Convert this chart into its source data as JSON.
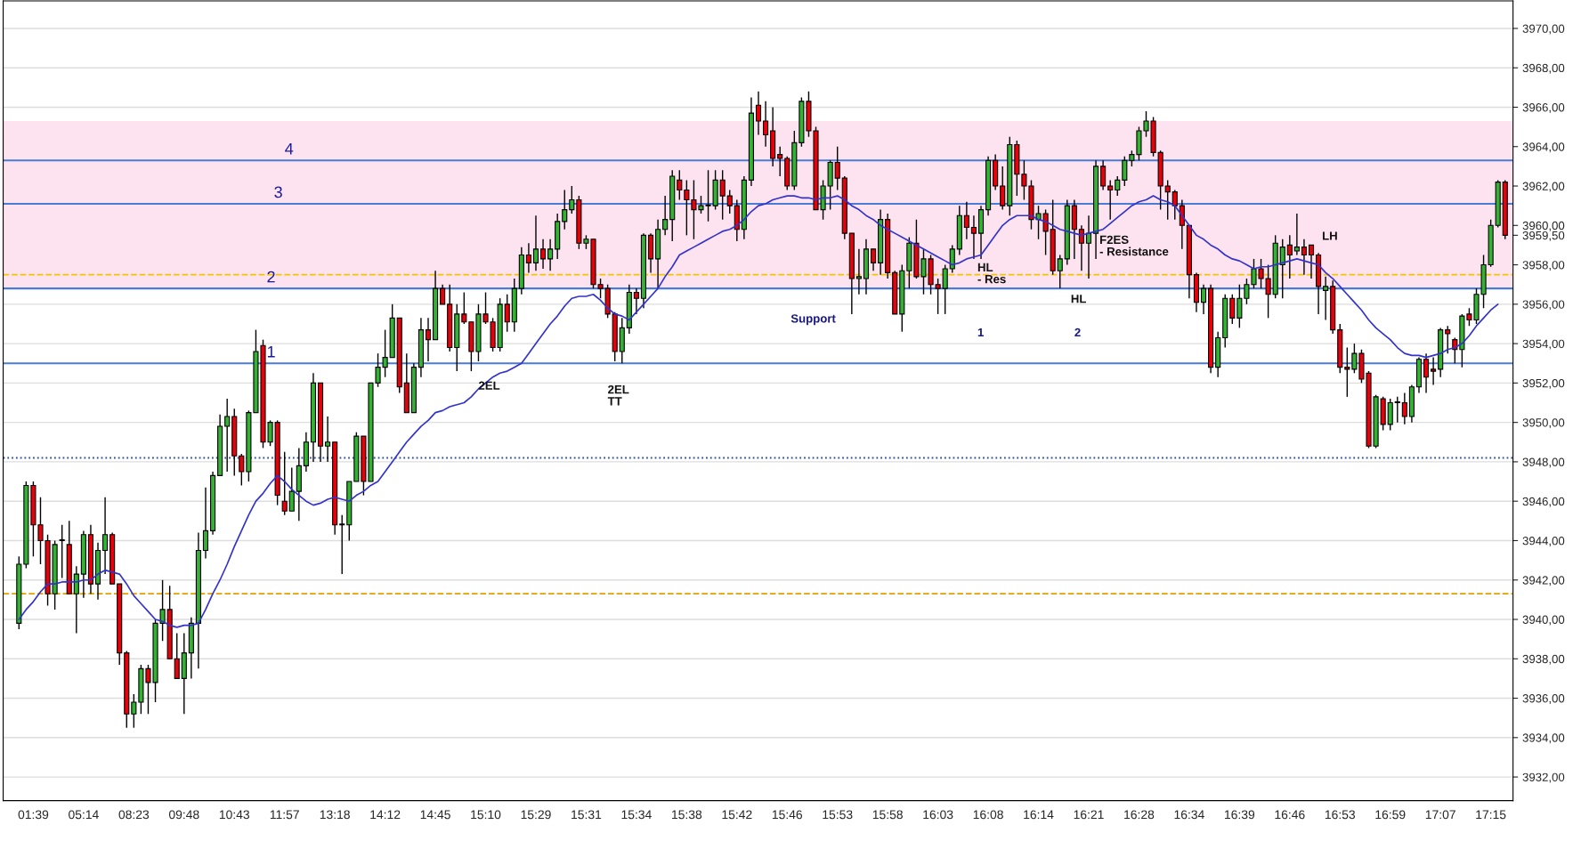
{
  "chart_data": {
    "type": "candlestick",
    "categories": [
      null,
      null,
      "01:39",
      null,
      null,
      null,
      null,
      null,
      null,
      "05:14",
      null,
      null,
      null,
      null,
      null,
      null,
      "08:23",
      null,
      null,
      null,
      null,
      null,
      null,
      "09:48",
      null,
      null,
      null,
      null,
      null,
      null,
      "10:43",
      null,
      null,
      null,
      null,
      null,
      null,
      "11:57",
      null,
      null,
      null,
      null,
      null,
      null,
      "13:18",
      null,
      null,
      null,
      null,
      null,
      null,
      "14:12",
      null,
      null,
      null,
      null,
      null,
      null,
      "14:45",
      null,
      null,
      null,
      null,
      null,
      null,
      "15:10",
      null,
      null,
      null,
      null,
      null,
      null,
      "15:29",
      null,
      null,
      null,
      null,
      null,
      null,
      "15:31",
      null,
      null,
      null,
      null,
      null,
      null,
      "15:34",
      null,
      null,
      null,
      null,
      null,
      null,
      "15:38",
      null,
      null,
      null,
      null,
      null,
      null,
      "15:42",
      null,
      null,
      null,
      null,
      null,
      null,
      "15:46",
      null,
      null,
      null,
      null,
      null,
      null,
      "15:53",
      null,
      null,
      null,
      null,
      null,
      null,
      "15:58",
      null,
      null,
      null,
      null,
      null,
      null,
      "16:03",
      null,
      null,
      null,
      null,
      null,
      null,
      "16:08",
      null,
      null,
      null,
      null,
      null,
      null,
      "16:14",
      null,
      null,
      null,
      null,
      null,
      null,
      "16:21",
      null,
      null,
      null,
      null,
      null,
      null,
      "16:28",
      null,
      null,
      null,
      null,
      null,
      null,
      "16:34",
      null,
      null,
      null,
      null,
      null,
      null,
      "16:39",
      null,
      null,
      null,
      null,
      null,
      null,
      "16:46",
      null,
      null,
      null,
      null,
      null,
      null,
      "16:53",
      null,
      null,
      null,
      null,
      null,
      null,
      "16:59",
      null,
      null,
      null,
      null,
      null,
      null,
      "17:07",
      null,
      null,
      null,
      null,
      null,
      null,
      "17:15",
      null,
      null
    ],
    "ohlc": [
      [
        3939.8,
        3943.2,
        3939.5,
        3942.8
      ],
      [
        3942.8,
        3947.0,
        3942.6,
        3946.8
      ],
      [
        3946.8,
        3947.0,
        3943.2,
        3944.8
      ],
      [
        3944.8,
        3946.2,
        3942.8,
        3944.0
      ],
      [
        3944.0,
        3944.3,
        3940.7,
        3941.3
      ],
      [
        3941.3,
        3944.0,
        3940.5,
        3943.8
      ],
      [
        3944.0,
        3944.8,
        3942.1,
        3944.0
      ],
      [
        3943.8,
        3945.0,
        3941.3,
        3941.3
      ],
      [
        3941.3,
        3942.7,
        3939.3,
        3942.3
      ],
      [
        3942.3,
        3944.5,
        3941.1,
        3944.3
      ],
      [
        3944.3,
        3944.8,
        3941.3,
        3941.8
      ],
      [
        3941.8,
        3943.9,
        3941.0,
        3943.5
      ],
      [
        3943.5,
        3946.2,
        3942.3,
        3944.3
      ],
      [
        3944.3,
        3944.4,
        3941.8,
        3941.8
      ],
      [
        3941.8,
        3941.8,
        3937.7,
        3938.3
      ],
      [
        3938.3,
        3938.4,
        3934.5,
        3935.2
      ],
      [
        3935.2,
        3936.2,
        3934.5,
        3935.8
      ],
      [
        3935.8,
        3937.7,
        3935.2,
        3937.5
      ],
      [
        3937.5,
        3937.7,
        3935.2,
        3936.8
      ],
      [
        3936.8,
        3940.0,
        3935.8,
        3939.8
      ],
      [
        3939.8,
        3942.0,
        3938.9,
        3940.5
      ],
      [
        3940.5,
        3941.7,
        3938.0,
        3938.0
      ],
      [
        3938.0,
        3939.3,
        3937.0,
        3937.0
      ],
      [
        3937.0,
        3939.3,
        3935.2,
        3938.3
      ],
      [
        3938.3,
        3940.1,
        3937.0,
        3939.8
      ],
      [
        3939.8,
        3944.4,
        3937.5,
        3943.5
      ],
      [
        3943.5,
        3946.7,
        3943.1,
        3944.5
      ],
      [
        3944.5,
        3947.5,
        3944.3,
        3947.3
      ],
      [
        3947.3,
        3950.4,
        3947.3,
        3949.8
      ],
      [
        3949.8,
        3951.2,
        3947.5,
        3950.3
      ],
      [
        3950.3,
        3950.7,
        3947.3,
        3948.3
      ],
      [
        3948.3,
        3948.4,
        3946.8,
        3947.5
      ],
      [
        3947.5,
        3950.6,
        3947.0,
        3950.5
      ],
      [
        3950.5,
        3954.7,
        3950.5,
        3953.6
      ],
      [
        3953.9,
        3954.2,
        3948.7,
        3949.0
      ],
      [
        3949.0,
        3950.1,
        3948.8,
        3950.0
      ],
      [
        3950.0,
        3950.1,
        3945.8,
        3946.3
      ],
      [
        3946.0,
        3948.5,
        3945.3,
        3945.5
      ],
      [
        3945.5,
        3947.7,
        3945.5,
        3946.5
      ],
      [
        3946.5,
        3948.7,
        3945.0,
        3947.8
      ],
      [
        3947.8,
        3949.5,
        3947.5,
        3949.0
      ],
      [
        3949.0,
        3952.5,
        3948.0,
        3952.0
      ],
      [
        3952.0,
        3952.0,
        3948.0,
        3948.8
      ],
      [
        3948.8,
        3950.3,
        3948.0,
        3949.0
      ],
      [
        3949.0,
        3949.0,
        3944.3,
        3944.8
      ],
      [
        3944.8,
        3945.3,
        3942.3,
        3944.8
      ],
      [
        3944.8,
        3947.0,
        3944.0,
        3947.0
      ],
      [
        3947.0,
        3949.5,
        3947.0,
        3949.3
      ],
      [
        3949.3,
        3949.3,
        3946.3,
        3947.0
      ],
      [
        3947.0,
        3952.0,
        3947.0,
        3952.0
      ],
      [
        3952.0,
        3953.5,
        3951.8,
        3952.8
      ],
      [
        3952.8,
        3954.7,
        3952.3,
        3953.3
      ],
      [
        3953.3,
        3956.0,
        3953.3,
        3955.3
      ],
      [
        3955.3,
        3955.3,
        3951.5,
        3951.8
      ],
      [
        3952.0,
        3953.5,
        3950.5,
        3950.5
      ],
      [
        3950.5,
        3953.0,
        3950.5,
        3952.8
      ],
      [
        3952.8,
        3955.3,
        3952.3,
        3954.7
      ],
      [
        3954.7,
        3955.3,
        3953.1,
        3954.2
      ],
      [
        3954.2,
        3957.7,
        3954.2,
        3956.8
      ],
      [
        3956.8,
        3957.0,
        3956.0,
        3956.0
      ],
      [
        3956.0,
        3957.0,
        3953.6,
        3953.8
      ],
      [
        3953.8,
        3956.0,
        3952.6,
        3955.5
      ],
      [
        3955.5,
        3956.6,
        3955.0,
        3955.1
      ],
      [
        3955.1,
        3955.1,
        3952.6,
        3953.6
      ],
      [
        3953.6,
        3956.0,
        3953.1,
        3955.5
      ],
      [
        3955.5,
        3956.6,
        3955.0,
        3955.1
      ],
      [
        3955.1,
        3955.3,
        3953.6,
        3953.8
      ],
      [
        3953.8,
        3956.3,
        3953.6,
        3956.0
      ],
      [
        3956.0,
        3956.5,
        3954.6,
        3955.1
      ],
      [
        3955.1,
        3957.3,
        3954.6,
        3956.8
      ],
      [
        3956.8,
        3958.9,
        3956.5,
        3958.5
      ],
      [
        3958.5,
        3959.1,
        3957.6,
        3958.1
      ],
      [
        3958.1,
        3960.5,
        3957.7,
        3958.8
      ],
      [
        3958.8,
        3959.3,
        3957.8,
        3958.3
      ],
      [
        3958.3,
        3959.3,
        3957.7,
        3958.8
      ],
      [
        3958.8,
        3960.6,
        3958.3,
        3960.2
      ],
      [
        3960.2,
        3961.8,
        3959.8,
        3960.8
      ],
      [
        3960.8,
        3962.0,
        3960.6,
        3961.3
      ],
      [
        3961.3,
        3961.5,
        3958.8,
        3959.1
      ],
      [
        3959.1,
        3959.5,
        3958.8,
        3959.3
      ],
      [
        3959.3,
        3959.3,
        3956.8,
        3957.0
      ],
      [
        3957.0,
        3957.3,
        3956.3,
        3956.8
      ],
      [
        3956.8,
        3957.0,
        3955.3,
        3955.5
      ],
      [
        3955.5,
        3955.6,
        3953.1,
        3953.6
      ],
      [
        3953.6,
        3955.3,
        3953.0,
        3954.8
      ],
      [
        3954.8,
        3957.0,
        3954.5,
        3956.6
      ],
      [
        3956.6,
        3956.8,
        3955.5,
        3956.3
      ],
      [
        3956.3,
        3959.6,
        3955.8,
        3959.5
      ],
      [
        3959.5,
        3959.6,
        3957.6,
        3958.3
      ],
      [
        3958.3,
        3960.3,
        3956.8,
        3959.8
      ],
      [
        3959.8,
        3961.5,
        3959.5,
        3960.3
      ],
      [
        3960.3,
        3962.8,
        3959.2,
        3962.5
      ],
      [
        3962.3,
        3962.8,
        3961.3,
        3961.8
      ],
      [
        3961.8,
        3962.3,
        3959.5,
        3961.3
      ],
      [
        3961.3,
        3962.3,
        3959.3,
        3960.8
      ],
      [
        3960.8,
        3961.5,
        3960.6,
        3961.0
      ],
      [
        3961.0,
        3962.8,
        3960.2,
        3961.0
      ],
      [
        3961.0,
        3962.8,
        3960.8,
        3962.3
      ],
      [
        3962.3,
        3962.8,
        3960.3,
        3961.5
      ],
      [
        3961.5,
        3961.8,
        3960.6,
        3961.0
      ],
      [
        3961.0,
        3961.3,
        3959.2,
        3959.8
      ],
      [
        3959.8,
        3962.5,
        3959.3,
        3962.3
      ],
      [
        3962.3,
        3966.5,
        3962.0,
        3965.7
      ],
      [
        3966.1,
        3966.8,
        3964.6,
        3965.3
      ],
      [
        3965.3,
        3966.3,
        3964.0,
        3964.6
      ],
      [
        3964.8,
        3966.0,
        3963.0,
        3963.4
      ],
      [
        3963.6,
        3964.0,
        3962.5,
        3963.4
      ],
      [
        3963.4,
        3963.5,
        3961.8,
        3962.0
      ],
      [
        3962.0,
        3964.8,
        3961.8,
        3964.2
      ],
      [
        3964.2,
        3966.5,
        3964.0,
        3966.3
      ],
      [
        3966.3,
        3966.8,
        3964.5,
        3964.8
      ],
      [
        3964.8,
        3965.0,
        3960.8,
        3960.8
      ],
      [
        3960.8,
        3962.3,
        3960.3,
        3962.0
      ],
      [
        3962.0,
        3963.3,
        3960.8,
        3963.2
      ],
      [
        3963.2,
        3964.0,
        3961.8,
        3962.4
      ],
      [
        3962.4,
        3962.5,
        3959.3,
        3959.6
      ],
      [
        3959.6,
        3959.6,
        3955.5,
        3957.3
      ],
      [
        3957.3,
        3958.8,
        3956.5,
        3957.4
      ],
      [
        3957.3,
        3959.3,
        3956.5,
        3958.8
      ],
      [
        3958.8,
        3958.8,
        3957.7,
        3958.1
      ],
      [
        3958.1,
        3960.8,
        3957.5,
        3960.3
      ],
      [
        3960.3,
        3960.6,
        3957.3,
        3957.6
      ],
      [
        3957.6,
        3957.7,
        3955.5,
        3955.5
      ],
      [
        3955.5,
        3958.0,
        3954.6,
        3957.7
      ],
      [
        3957.7,
        3959.4,
        3956.8,
        3959.1
      ],
      [
        3959.1,
        3960.3,
        3957.3,
        3957.4
      ],
      [
        3957.4,
        3958.8,
        3956.5,
        3958.3
      ],
      [
        3958.3,
        3958.5,
        3956.5,
        3957.0
      ],
      [
        3957.0,
        3957.3,
        3955.5,
        3956.8
      ],
      [
        3956.8,
        3958.0,
        3955.5,
        3957.8
      ],
      [
        3957.8,
        3959.0,
        3957.6,
        3958.8
      ],
      [
        3958.8,
        3961.0,
        3958.5,
        3960.5
      ],
      [
        3960.5,
        3961.2,
        3959.3,
        3959.9
      ],
      [
        3959.9,
        3960.5,
        3958.3,
        3959.6
      ],
      [
        3959.6,
        3961.0,
        3958.3,
        3960.8
      ],
      [
        3960.8,
        3963.5,
        3960.5,
        3963.3
      ],
      [
        3963.3,
        3963.6,
        3961.8,
        3962.0
      ],
      [
        3962.0,
        3963.0,
        3960.8,
        3961.0
      ],
      [
        3961.0,
        3964.5,
        3960.5,
        3964.1
      ],
      [
        3964.1,
        3964.3,
        3961.5,
        3962.6
      ],
      [
        3962.6,
        3963.3,
        3961.3,
        3962.0
      ],
      [
        3962.0,
        3962.3,
        3959.8,
        3960.3
      ],
      [
        3960.3,
        3961.0,
        3959.3,
        3960.6
      ],
      [
        3960.6,
        3960.8,
        3958.5,
        3959.7
      ],
      [
        3959.8,
        3961.3,
        3957.5,
        3957.7
      ],
      [
        3957.7,
        3958.5,
        3956.8,
        3958.3
      ],
      [
        3958.3,
        3961.3,
        3958.0,
        3961.0
      ],
      [
        3961.0,
        3961.3,
        3958.3,
        3959.8
      ],
      [
        3959.8,
        3960.0,
        3957.7,
        3959.1
      ],
      [
        3959.1,
        3960.5,
        3957.3,
        3959.6
      ],
      [
        3959.6,
        3963.3,
        3958.3,
        3963.0
      ],
      [
        3963.0,
        3963.3,
        3961.8,
        3962.0
      ],
      [
        3962.0,
        3962.3,
        3960.3,
        3961.8
      ],
      [
        3961.8,
        3962.5,
        3961.5,
        3962.3
      ],
      [
        3962.3,
        3963.5,
        3962.0,
        3963.3
      ],
      [
        3963.3,
        3963.8,
        3963.0,
        3963.6
      ],
      [
        3963.6,
        3965.0,
        3963.3,
        3964.8
      ],
      [
        3964.8,
        3965.8,
        3964.5,
        3965.3
      ],
      [
        3965.3,
        3965.5,
        3963.5,
        3963.7
      ],
      [
        3963.7,
        3963.8,
        3960.8,
        3962.0
      ],
      [
        3962.0,
        3962.3,
        3960.3,
        3961.7
      ],
      [
        3961.7,
        3961.8,
        3960.3,
        3961.0
      ],
      [
        3961.0,
        3961.3,
        3958.8,
        3960.0
      ],
      [
        3960.0,
        3960.0,
        3956.3,
        3957.5
      ],
      [
        3957.5,
        3957.6,
        3955.6,
        3956.1
      ],
      [
        3956.1,
        3957.0,
        3955.5,
        3956.8
      ],
      [
        3956.8,
        3957.0,
        3952.5,
        3952.8
      ],
      [
        3952.8,
        3954.6,
        3952.3,
        3954.3
      ],
      [
        3954.3,
        3956.5,
        3953.8,
        3956.3
      ],
      [
        3956.3,
        3956.5,
        3955.0,
        3955.3
      ],
      [
        3955.3,
        3957.0,
        3954.8,
        3956.3
      ],
      [
        3956.3,
        3957.3,
        3956.0,
        3957.0
      ],
      [
        3957.0,
        3958.3,
        3956.8,
        3957.8
      ],
      [
        3957.8,
        3958.3,
        3956.8,
        3957.3
      ],
      [
        3957.3,
        3958.0,
        3955.3,
        3956.5
      ],
      [
        3956.5,
        3959.5,
        3956.3,
        3959.1
      ],
      [
        3958.0,
        3959.3,
        3956.3,
        3958.9
      ],
      [
        3959.0,
        3959.5,
        3957.3,
        3958.5
      ],
      [
        3958.7,
        3960.6,
        3958.5,
        3958.9
      ],
      [
        3958.9,
        3959.3,
        3957.5,
        3958.5
      ],
      [
        3959.0,
        3959.0,
        3957.3,
        3958.5
      ],
      [
        3958.5,
        3958.6,
        3955.5,
        3956.9
      ],
      [
        3956.7,
        3957.4,
        3955.2,
        3956.9
      ],
      [
        3956.9,
        3957.2,
        3954.5,
        3954.7
      ],
      [
        3954.7,
        3955.0,
        3952.5,
        3952.8
      ],
      [
        3952.8,
        3953.8,
        3951.3,
        3952.7
      ],
      [
        3952.7,
        3954.0,
        3952.5,
        3953.5
      ],
      [
        3953.5,
        3953.7,
        3952.0,
        3952.2
      ],
      [
        3952.5,
        3952.6,
        3948.7,
        3948.8
      ],
      [
        3948.8,
        3951.4,
        3948.7,
        3951.3
      ],
      [
        3951.2,
        3951.3,
        3949.6,
        3949.9
      ],
      [
        3949.9,
        3951.2,
        3949.6,
        3951.0
      ],
      [
        3951.0,
        3951.3,
        3950.0,
        3951.0
      ],
      [
        3951.0,
        3951.5,
        3949.9,
        3950.3
      ],
      [
        3950.3,
        3951.9,
        3950.0,
        3951.8
      ],
      [
        3951.8,
        3953.3,
        3951.5,
        3953.2
      ],
      [
        3953.2,
        3953.5,
        3951.5,
        3952.3
      ],
      [
        3952.7,
        3953.3,
        3951.9,
        3952.6
      ],
      [
        3952.7,
        3954.8,
        3952.3,
        3954.7
      ],
      [
        3954.7,
        3954.9,
        3953.5,
        3954.5
      ],
      [
        3954.2,
        3954.3,
        3953.0,
        3953.7
      ],
      [
        3953.7,
        3955.5,
        3952.8,
        3955.4
      ],
      [
        3955.5,
        3955.8,
        3954.9,
        3955.2
      ],
      [
        3955.2,
        3956.8,
        3955.0,
        3956.5
      ],
      [
        3956.5,
        3958.5,
        3955.8,
        3958.0
      ],
      [
        3958.0,
        3960.3,
        3957.9,
        3960.0
      ],
      [
        3960.0,
        3962.3,
        3959.9,
        3962.2
      ],
      [
        3962.2,
        3962.3,
        3959.3,
        3959.5
      ]
    ],
    "series": [
      {
        "type": "line",
        "color": "#3333cc",
        "values": [
          3940.0,
          3940.5,
          3940.9,
          3941.4,
          3941.8,
          3941.8,
          3941.9,
          3941.9,
          3941.9,
          3942.0,
          3942.0,
          3942.3,
          3942.5,
          3942.4,
          3942.3,
          3941.8,
          3941.2,
          3940.8,
          3940.4,
          3940.0,
          3939.9,
          3939.7,
          3939.6,
          3939.7,
          3939.7,
          3939.8,
          3940.5,
          3941.3,
          3942.0,
          3942.8,
          3943.7,
          3944.5,
          3945.3,
          3946.0,
          3946.4,
          3946.9,
          3947.3,
          3947.0,
          3946.6,
          3946.3,
          3946.0,
          3945.8,
          3945.9,
          3946.1,
          3946.2,
          3946.1,
          3946.0,
          3946.3,
          3946.5,
          3946.8,
          3947.0,
          3947.5,
          3948.0,
          3948.5,
          3949.0,
          3949.4,
          3949.8,
          3950.1,
          3950.5,
          3950.6,
          3950.8,
          3950.9,
          3951.0,
          3951.3,
          3951.7,
          3952.0,
          3952.3,
          3952.5,
          3952.6,
          3952.8,
          3953.0,
          3953.5,
          3954.0,
          3954.5,
          3955.0,
          3955.4,
          3955.9,
          3956.3,
          3956.4,
          3956.4,
          3956.5,
          3956.2,
          3955.8,
          3955.5,
          3955.4,
          3955.2,
          3955.6,
          3956.0,
          3956.4,
          3956.8,
          3957.4,
          3957.9,
          3958.5,
          3958.7,
          3958.9,
          3959.1,
          3959.3,
          3959.5,
          3959.7,
          3959.8,
          3960.0,
          3960.3,
          3960.7,
          3961.0,
          3961.1,
          3961.3,
          3961.4,
          3961.5,
          3961.5,
          3961.4,
          3961.4,
          3961.3,
          3961.4,
          3961.4,
          3961.5,
          3961.3,
          3961.0,
          3960.8,
          3960.5,
          3960.3,
          3960.0,
          3959.8,
          3959.6,
          3959.4,
          3959.2,
          3959.0,
          3958.8,
          3958.6,
          3958.4,
          3958.2,
          3958.0,
          3958.1,
          3958.3,
          3958.4,
          3958.5,
          3959.0,
          3959.5,
          3960.0,
          3960.3,
          3960.5,
          3960.5,
          3960.5,
          3960.3,
          3960.2,
          3960.0,
          3959.8,
          3959.7,
          3959.6,
          3959.5,
          3959.6,
          3959.7,
          3959.8,
          3960.1,
          3960.4,
          3960.7,
          3961.0,
          3961.2,
          3961.3,
          3961.5,
          3961.3,
          3961.2,
          3961.0,
          3960.5,
          3960.0,
          3959.5,
          3959.3,
          3959.0,
          3958.8,
          3958.5,
          3958.3,
          3958.2,
          3958.0,
          3957.8,
          3957.9,
          3957.9,
          3958.0,
          3958.1,
          3958.2,
          3958.3,
          3958.2,
          3958.1,
          3958.0,
          3957.6,
          3957.3,
          3956.9,
          3956.5,
          3956.1,
          3955.7,
          3955.2,
          3954.8,
          3954.5,
          3954.2,
          3953.8,
          3953.5,
          3953.4,
          3953.4,
          3953.3,
          3953.4,
          3953.5,
          3953.7,
          3953.8,
          3954.0,
          3954.4,
          3954.9,
          3955.3,
          3955.7,
          3956.0,
          null
        ]
      }
    ],
    "ylim": [
      3930.8,
      3971.4
    ],
    "yticks": [
      {
        "value": 3932,
        "label": "3932,00"
      },
      {
        "value": 3934,
        "label": "3934,00"
      },
      {
        "value": 3936,
        "label": "3936,00"
      },
      {
        "value": 3938,
        "label": "3938,00"
      },
      {
        "value": 3940,
        "label": "3940,00"
      },
      {
        "value": 3942,
        "label": "3942,00"
      },
      {
        "value": 3944,
        "label": "3944,00"
      },
      {
        "value": 3946,
        "label": "3946,00"
      },
      {
        "value": 3948,
        "label": "3948,00"
      },
      {
        "value": 3950,
        "label": "3950,00"
      },
      {
        "value": 3952,
        "label": "3952,00"
      },
      {
        "value": 3954,
        "label": "3954,00"
      },
      {
        "value": 3956,
        "label": "3956,00"
      },
      {
        "value": 3958,
        "label": "3958,00"
      },
      {
        "value": 3959.5,
        "label": "3959,50"
      },
      {
        "value": 3960,
        "label": "3960,00"
      },
      {
        "value": 3962,
        "label": "3962,00"
      },
      {
        "value": 3964,
        "label": "3964,00"
      },
      {
        "value": 3966,
        "label": "3966,00"
      },
      {
        "value": 3968,
        "label": "3968,00"
      },
      {
        "value": 3970,
        "label": "3970,00"
      }
    ],
    "grid": "y",
    "bands": [
      {
        "axis": "y",
        "from": 3956.8,
        "to": 3965.3,
        "color": "#fde3ef"
      }
    ],
    "ref_lines": [
      {
        "axis": "y",
        "value": 3953.0,
        "color": "#4a7bd8",
        "line_style": "solid"
      },
      {
        "axis": "y",
        "value": 3956.8,
        "color": "#4a7bd8",
        "line_style": "solid"
      },
      {
        "axis": "y",
        "value": 3961.1,
        "color": "#4a7bd8",
        "line_style": "solid"
      },
      {
        "axis": "y",
        "value": 3963.3,
        "color": "#4a7bd8",
        "line_style": "solid"
      },
      {
        "axis": "y",
        "value": 3957.5,
        "color": "#f5c400",
        "line_style": "dashed"
      },
      {
        "axis": "y",
        "value": 3941.3,
        "color": "#e0a000",
        "line_style": "dashed"
      },
      {
        "axis": "y",
        "value": 3948.2,
        "color": "#3050a0",
        "line_style": "dotted"
      }
    ],
    "annotations": [
      "1",
      "2",
      "3",
      "4",
      "2EL",
      "2EL\nTT",
      "Support",
      "HL\n- Res",
      "1",
      "2",
      "HL",
      "F2ES\n- Resistance",
      "LH"
    ]
  }
}
